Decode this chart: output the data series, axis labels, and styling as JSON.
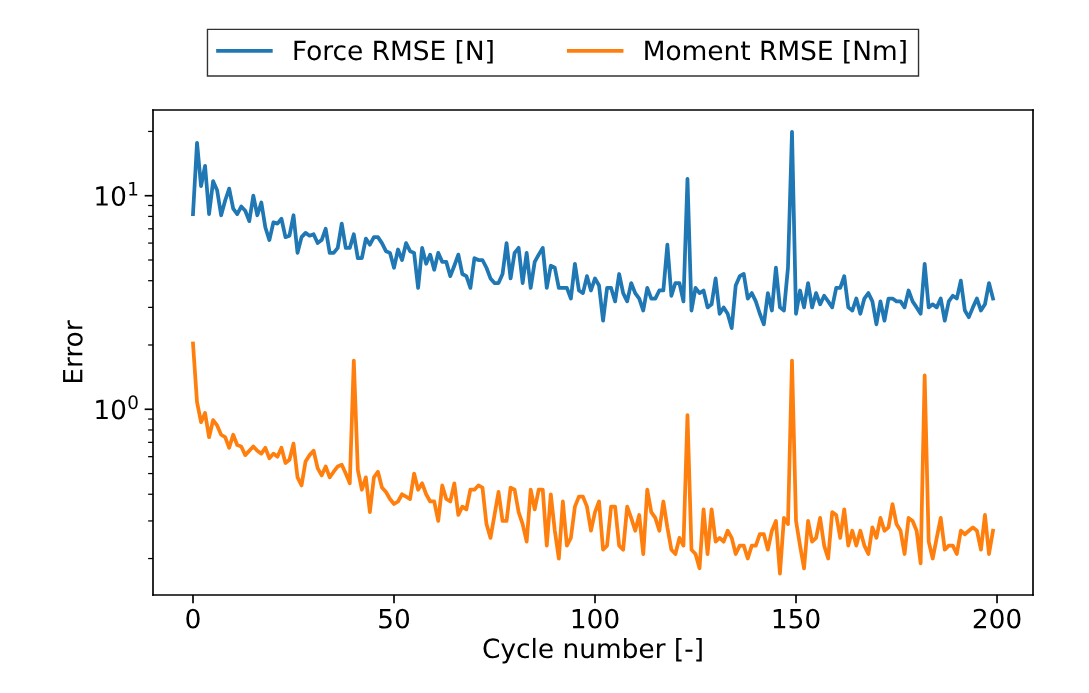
{
  "chart_data": {
    "type": "line",
    "xlabel": "Cycle number [-]",
    "ylabel": "Error",
    "x": [
      0,
      1,
      2,
      3,
      4,
      5,
      6,
      7,
      8,
      9,
      10,
      11,
      12,
      13,
      14,
      15,
      16,
      17,
      18,
      19,
      20,
      21,
      22,
      23,
      24,
      25,
      26,
      27,
      28,
      29,
      30,
      31,
      32,
      33,
      34,
      35,
      36,
      37,
      38,
      39,
      40,
      41,
      42,
      43,
      44,
      45,
      46,
      47,
      48,
      49,
      50,
      51,
      52,
      53,
      54,
      55,
      56,
      57,
      58,
      59,
      60,
      61,
      62,
      63,
      64,
      65,
      66,
      67,
      68,
      69,
      70,
      71,
      72,
      73,
      74,
      75,
      76,
      77,
      78,
      79,
      80,
      81,
      82,
      83,
      84,
      85,
      86,
      87,
      88,
      89,
      90,
      91,
      92,
      93,
      94,
      95,
      96,
      97,
      98,
      99,
      100,
      101,
      102,
      103,
      104,
      105,
      106,
      107,
      108,
      109,
      110,
      111,
      112,
      113,
      114,
      115,
      116,
      117,
      118,
      119,
      120,
      121,
      122,
      123,
      124,
      125,
      126,
      127,
      128,
      129,
      130,
      131,
      132,
      133,
      134,
      135,
      136,
      137,
      138,
      139,
      140,
      141,
      142,
      143,
      144,
      145,
      146,
      147,
      148,
      149,
      150,
      151,
      152,
      153,
      154,
      155,
      156,
      157,
      158,
      159,
      160,
      161,
      162,
      163,
      164,
      165,
      166,
      167,
      168,
      169,
      170,
      171,
      172,
      173,
      174,
      175,
      176,
      177,
      178,
      179,
      180,
      181,
      182,
      183,
      184,
      185,
      186,
      187,
      188,
      189,
      190,
      191,
      192,
      193,
      194,
      195,
      196,
      197,
      198,
      199
    ],
    "series": [
      {
        "name": "Force RMSE [N]",
        "color": "#1f77b4",
        "values": [
          8.2,
          17.7,
          11.1,
          13.8,
          8.2,
          11.7,
          10.6,
          8.1,
          9.5,
          10.8,
          8.7,
          8.2,
          8.9,
          8.5,
          7.6,
          10.0,
          8.1,
          9.3,
          7.1,
          6.2,
          7.5,
          7.4,
          7.8,
          6.4,
          6.5,
          8.1,
          5.4,
          6.4,
          6.7,
          6.5,
          6.6,
          6.0,
          6.2,
          7.0,
          5.4,
          5.4,
          5.7,
          7.4,
          5.7,
          5.7,
          6.6,
          5.1,
          5.1,
          6.3,
          5.9,
          6.4,
          6.4,
          6.0,
          5.5,
          5.4,
          4.6,
          5.6,
          5.0,
          6.0,
          5.5,
          5.4,
          3.7,
          5.7,
          4.8,
          5.3,
          4.5,
          5.4,
          4.9,
          4.9,
          4.2,
          4.7,
          5.3,
          4.3,
          4.2,
          3.7,
          5.1,
          5.0,
          5.0,
          4.6,
          4.1,
          3.9,
          3.9,
          4.3,
          6.0,
          4.1,
          5.4,
          5.7,
          3.9,
          5.4,
          3.7,
          4.9,
          5.3,
          5.7,
          3.7,
          4.7,
          4.6,
          3.7,
          3.7,
          3.7,
          3.3,
          4.8,
          3.6,
          3.5,
          4.2,
          3.6,
          4.1,
          3.8,
          2.6,
          3.7,
          3.7,
          3.2,
          4.3,
          3.5,
          3.2,
          3.9,
          3.5,
          3.3,
          2.9,
          3.7,
          3.3,
          3.3,
          3.6,
          3.6,
          5.9,
          3.4,
          3.9,
          3.9,
          3.2,
          12.0,
          2.9,
          3.7,
          3.5,
          3.6,
          3.0,
          3.1,
          4.1,
          2.8,
          3.0,
          2.8,
          2.4,
          3.8,
          4.2,
          4.3,
          3.3,
          3.5,
          3.2,
          2.8,
          2.5,
          3.5,
          2.9,
          4.6,
          3.0,
          2.9,
          4.6,
          19.9,
          2.8,
          3.6,
          3.0,
          3.9,
          3.0,
          3.5,
          3.1,
          3.4,
          3.2,
          3.0,
          3.7,
          3.7,
          4.2,
          3.0,
          2.9,
          3.3,
          2.8,
          3.3,
          3.5,
          3.2,
          2.5,
          3.2,
          2.6,
          3.3,
          3.3,
          3.2,
          3.2,
          3.0,
          3.6,
          3.2,
          3.0,
          2.8,
          4.8,
          3.0,
          3.1,
          3.0,
          3.3,
          2.6,
          3.2,
          3.4,
          3.3,
          4.0,
          2.9,
          2.7,
          3.0,
          3.3,
          2.9,
          3.1,
          3.9,
          3.3
        ]
      },
      {
        "name": "Moment RMSE [Nm]",
        "color": "#ff7f0e",
        "values": [
          2.03,
          1.08,
          0.87,
          0.96,
          0.74,
          0.89,
          0.84,
          0.76,
          0.74,
          0.66,
          0.76,
          0.68,
          0.67,
          0.61,
          0.64,
          0.67,
          0.64,
          0.62,
          0.66,
          0.59,
          0.62,
          0.6,
          0.66,
          0.56,
          0.58,
          0.69,
          0.48,
          0.44,
          0.57,
          0.61,
          0.64,
          0.53,
          0.49,
          0.54,
          0.48,
          0.51,
          0.54,
          0.55,
          0.5,
          0.45,
          1.69,
          0.52,
          0.42,
          0.48,
          0.33,
          0.48,
          0.51,
          0.43,
          0.41,
          0.38,
          0.36,
          0.37,
          0.4,
          0.39,
          0.38,
          0.5,
          0.42,
          0.45,
          0.4,
          0.37,
          0.37,
          0.3,
          0.44,
          0.38,
          0.37,
          0.45,
          0.32,
          0.35,
          0.34,
          0.42,
          0.42,
          0.44,
          0.43,
          0.29,
          0.25,
          0.32,
          0.41,
          0.3,
          0.3,
          0.43,
          0.42,
          0.33,
          0.29,
          0.24,
          0.42,
          0.34,
          0.42,
          0.42,
          0.23,
          0.4,
          0.27,
          0.2,
          0.37,
          0.23,
          0.25,
          0.35,
          0.39,
          0.39,
          0.35,
          0.27,
          0.33,
          0.37,
          0.22,
          0.23,
          0.35,
          0.35,
          0.23,
          0.22,
          0.35,
          0.31,
          0.27,
          0.32,
          0.21,
          0.42,
          0.33,
          0.31,
          0.27,
          0.37,
          0.28,
          0.22,
          0.21,
          0.25,
          0.23,
          0.94,
          0.22,
          0.21,
          0.18,
          0.34,
          0.21,
          0.34,
          0.24,
          0.25,
          0.24,
          0.27,
          0.25,
          0.21,
          0.23,
          0.23,
          0.2,
          0.23,
          0.23,
          0.26,
          0.26,
          0.22,
          0.27,
          0.3,
          0.17,
          0.31,
          0.29,
          1.69,
          0.3,
          0.23,
          0.18,
          0.3,
          0.24,
          0.25,
          0.31,
          0.23,
          0.2,
          0.33,
          0.32,
          0.25,
          0.34,
          0.23,
          0.27,
          0.23,
          0.27,
          0.23,
          0.21,
          0.28,
          0.25,
          0.31,
          0.27,
          0.28,
          0.36,
          0.29,
          0.27,
          0.21,
          0.31,
          0.3,
          0.27,
          0.19,
          1.44,
          0.24,
          0.2,
          0.25,
          0.31,
          0.22,
          0.23,
          0.23,
          0.21,
          0.27,
          0.26,
          0.27,
          0.28,
          0.27,
          0.22,
          0.32,
          0.21,
          0.27
        ]
      }
    ],
    "log": "y",
    "xlim": [
      -9.95,
      208.95
    ],
    "xticks": [
      0,
      50,
      100,
      150,
      200
    ],
    "ylim": [
      0.135,
      25.2
    ],
    "yticks": [
      {
        "value": 1,
        "label": "10$^{0}$"
      },
      {
        "value": 10,
        "label": "10$^{1}$"
      }
    ],
    "legend": "top",
    "grid": false
  }
}
